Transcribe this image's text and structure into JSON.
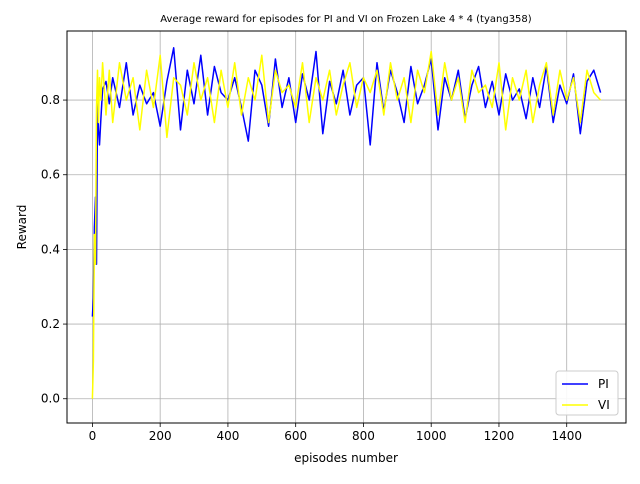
{
  "chart_data": {
    "type": "line",
    "title": "Average reward for episodes for PI and VI on Frozen Lake 4 * 4 (tyang358)",
    "xlabel": "episodes number",
    "ylabel": "Reward",
    "xlim": [
      -75,
      1575
    ],
    "ylim": [
      -0.065,
      0.985
    ],
    "xticks": [
      0,
      200,
      400,
      600,
      800,
      1000,
      1200,
      1400
    ],
    "yticks": [
      0.0,
      0.2,
      0.4,
      0.6,
      0.8
    ],
    "xtick_labels": [
      "0",
      "200",
      "400",
      "600",
      "800",
      "1000",
      "1200",
      "1400"
    ],
    "ytick_labels": [
      "0.0",
      "0.2",
      "0.4",
      "0.6",
      "0.8"
    ],
    "grid": true,
    "legend_position": "lower-right",
    "series": [
      {
        "name": "PI",
        "color": "#0000ff",
        "x": [
          0,
          3,
          6,
          9,
          12,
          15,
          18,
          21,
          25,
          30,
          40,
          50,
          60,
          80,
          100,
          120,
          140,
          160,
          180,
          200,
          220,
          240,
          260,
          280,
          300,
          320,
          340,
          360,
          380,
          400,
          420,
          440,
          460,
          480,
          500,
          520,
          540,
          560,
          580,
          600,
          620,
          640,
          660,
          680,
          700,
          720,
          740,
          760,
          780,
          800,
          820,
          840,
          860,
          880,
          900,
          920,
          940,
          960,
          980,
          1000,
          1020,
          1040,
          1060,
          1080,
          1100,
          1120,
          1140,
          1160,
          1180,
          1200,
          1220,
          1240,
          1260,
          1280,
          1300,
          1320,
          1340,
          1360,
          1380,
          1400,
          1420,
          1440,
          1460,
          1480,
          1500
        ],
        "y": [
          0.22,
          0.27,
          0.46,
          0.54,
          0.36,
          0.8,
          0.72,
          0.68,
          0.75,
          0.83,
          0.85,
          0.79,
          0.86,
          0.78,
          0.9,
          0.76,
          0.84,
          0.79,
          0.82,
          0.73,
          0.85,
          0.94,
          0.72,
          0.88,
          0.79,
          0.92,
          0.76,
          0.89,
          0.82,
          0.8,
          0.86,
          0.78,
          0.69,
          0.88,
          0.84,
          0.73,
          0.91,
          0.78,
          0.86,
          0.74,
          0.87,
          0.8,
          0.93,
          0.71,
          0.85,
          0.79,
          0.88,
          0.76,
          0.84,
          0.86,
          0.68,
          0.9,
          0.77,
          0.88,
          0.82,
          0.74,
          0.89,
          0.79,
          0.84,
          0.91,
          0.72,
          0.86,
          0.8,
          0.88,
          0.75,
          0.84,
          0.89,
          0.78,
          0.85,
          0.76,
          0.87,
          0.8,
          0.83,
          0.75,
          0.86,
          0.78,
          0.89,
          0.74,
          0.84,
          0.79,
          0.87,
          0.71,
          0.85,
          0.88,
          0.82
        ]
      },
      {
        "name": "VI",
        "color": "#ffff00",
        "x": [
          0,
          3,
          6,
          9,
          12,
          15,
          18,
          21,
          25,
          30,
          40,
          50,
          60,
          80,
          100,
          120,
          140,
          160,
          180,
          200,
          220,
          240,
          260,
          280,
          300,
          320,
          340,
          360,
          380,
          400,
          420,
          440,
          460,
          480,
          500,
          520,
          540,
          560,
          580,
          600,
          620,
          640,
          660,
          680,
          700,
          720,
          740,
          760,
          780,
          800,
          820,
          840,
          860,
          880,
          900,
          920,
          940,
          960,
          980,
          1000,
          1020,
          1040,
          1060,
          1080,
          1100,
          1120,
          1140,
          1160,
          1180,
          1200,
          1220,
          1240,
          1260,
          1280,
          1300,
          1320,
          1340,
          1360,
          1380,
          1400,
          1420,
          1440,
          1460,
          1480,
          1500
        ],
        "y": [
          0.0,
          0.1,
          0.44,
          0.36,
          0.78,
          0.88,
          0.74,
          0.86,
          0.8,
          0.9,
          0.76,
          0.88,
          0.74,
          0.9,
          0.8,
          0.86,
          0.72,
          0.88,
          0.78,
          0.92,
          0.7,
          0.86,
          0.84,
          0.76,
          0.9,
          0.8,
          0.86,
          0.74,
          0.88,
          0.78,
          0.9,
          0.76,
          0.86,
          0.8,
          0.92,
          0.74,
          0.88,
          0.82,
          0.84,
          0.78,
          0.9,
          0.74,
          0.86,
          0.8,
          0.88,
          0.76,
          0.84,
          0.9,
          0.78,
          0.86,
          0.82,
          0.88,
          0.76,
          0.9,
          0.8,
          0.86,
          0.74,
          0.88,
          0.82,
          0.93,
          0.76,
          0.9,
          0.8,
          0.86,
          0.74,
          0.88,
          0.82,
          0.84,
          0.78,
          0.9,
          0.72,
          0.86,
          0.8,
          0.88,
          0.74,
          0.84,
          0.9,
          0.76,
          0.88,
          0.8,
          0.86,
          0.74,
          0.88,
          0.82,
          0.8
        ]
      }
    ]
  }
}
